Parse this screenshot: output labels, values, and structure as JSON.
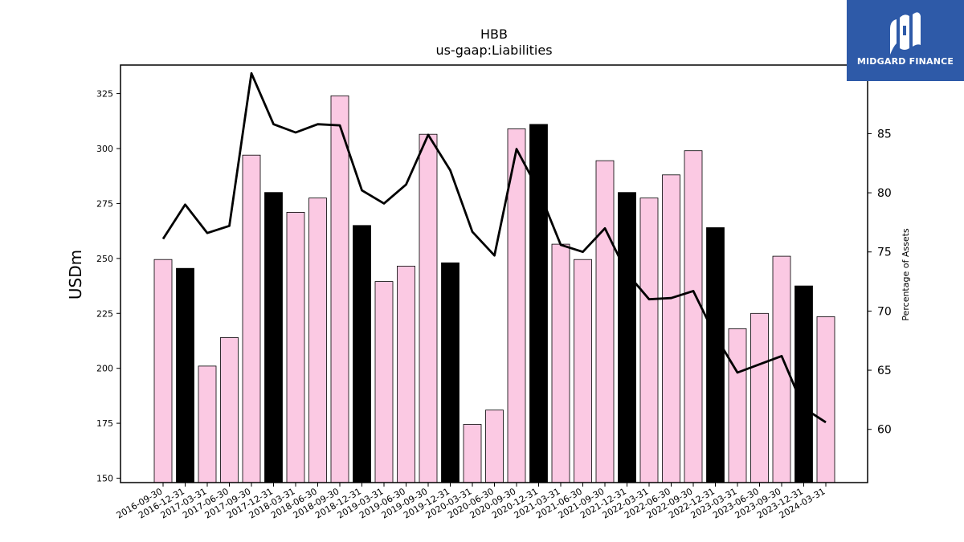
{
  "chart_data": {
    "type": "bar",
    "title": "HBB",
    "subtitle": "us-gaap:Liabilities",
    "ylabel": "USDm",
    "y2label": "Percentage of Assets",
    "ylim": [
      148,
      338
    ],
    "y2lim": [
      55.5,
      90.8
    ],
    "yticks": [
      150,
      175,
      200,
      225,
      250,
      275,
      300,
      325
    ],
    "y2ticks": [
      60,
      65,
      70,
      75,
      80,
      85
    ],
    "grid": false,
    "categories": [
      "2016-09-30",
      "2016-12-31",
      "2017-03-31",
      "2017-06-30",
      "2017-09-30",
      "2017-12-31",
      "2018-03-31",
      "2018-06-30",
      "2018-09-30",
      "2018-12-31",
      "2019-03-31",
      "2019-06-30",
      "2019-09-30",
      "2019-12-31",
      "2020-03-31",
      "2020-06-30",
      "2020-09-30",
      "2020-12-31",
      "2021-03-31",
      "2021-06-30",
      "2021-09-30",
      "2021-12-31",
      "2022-03-31",
      "2022-06-30",
      "2022-09-30",
      "2022-12-31",
      "2023-03-31",
      "2023-06-30",
      "2023-09-30",
      "2023-12-31",
      "2024-03-31"
    ],
    "series": [
      {
        "kind": "bar",
        "values": [
          249.5,
          245.5,
          201,
          214,
          297,
          280,
          271,
          277.5,
          324,
          265,
          239.5,
          246.5,
          306.5,
          248,
          174.5,
          181,
          309,
          311,
          256.5,
          249.5,
          294.5,
          280,
          277.5,
          288,
          299,
          264,
          218,
          225,
          251,
          237.5,
          223.5
        ],
        "highlight_fill": "#000000",
        "normal_fill": "#fbc9e3"
      },
      {
        "kind": "line",
        "axis": "right",
        "color": "#000000",
        "values": [
          76.1,
          79.0,
          76.6,
          77.2,
          90.1,
          85.8,
          85.1,
          85.8,
          85.7,
          80.2,
          79.1,
          80.7,
          84.9,
          81.9,
          76.7,
          74.7,
          83.7,
          80.2,
          75.6,
          75.0,
          77.0,
          73.2,
          71.0,
          71.1,
          71.7,
          67.9,
          64.8,
          65.5,
          66.2,
          61.8,
          60.6
        ]
      }
    ],
    "highlighted_categories": [
      "2016-12-31",
      "2017-12-31",
      "2018-12-31",
      "2019-12-31",
      "2020-12-31",
      "2021-12-31",
      "2022-12-31",
      "2023-12-31"
    ]
  },
  "logo": {
    "text": "MIDGARD FINANCE",
    "background": "#2e5aa8",
    "icon": "midgard-logo-mark"
  }
}
